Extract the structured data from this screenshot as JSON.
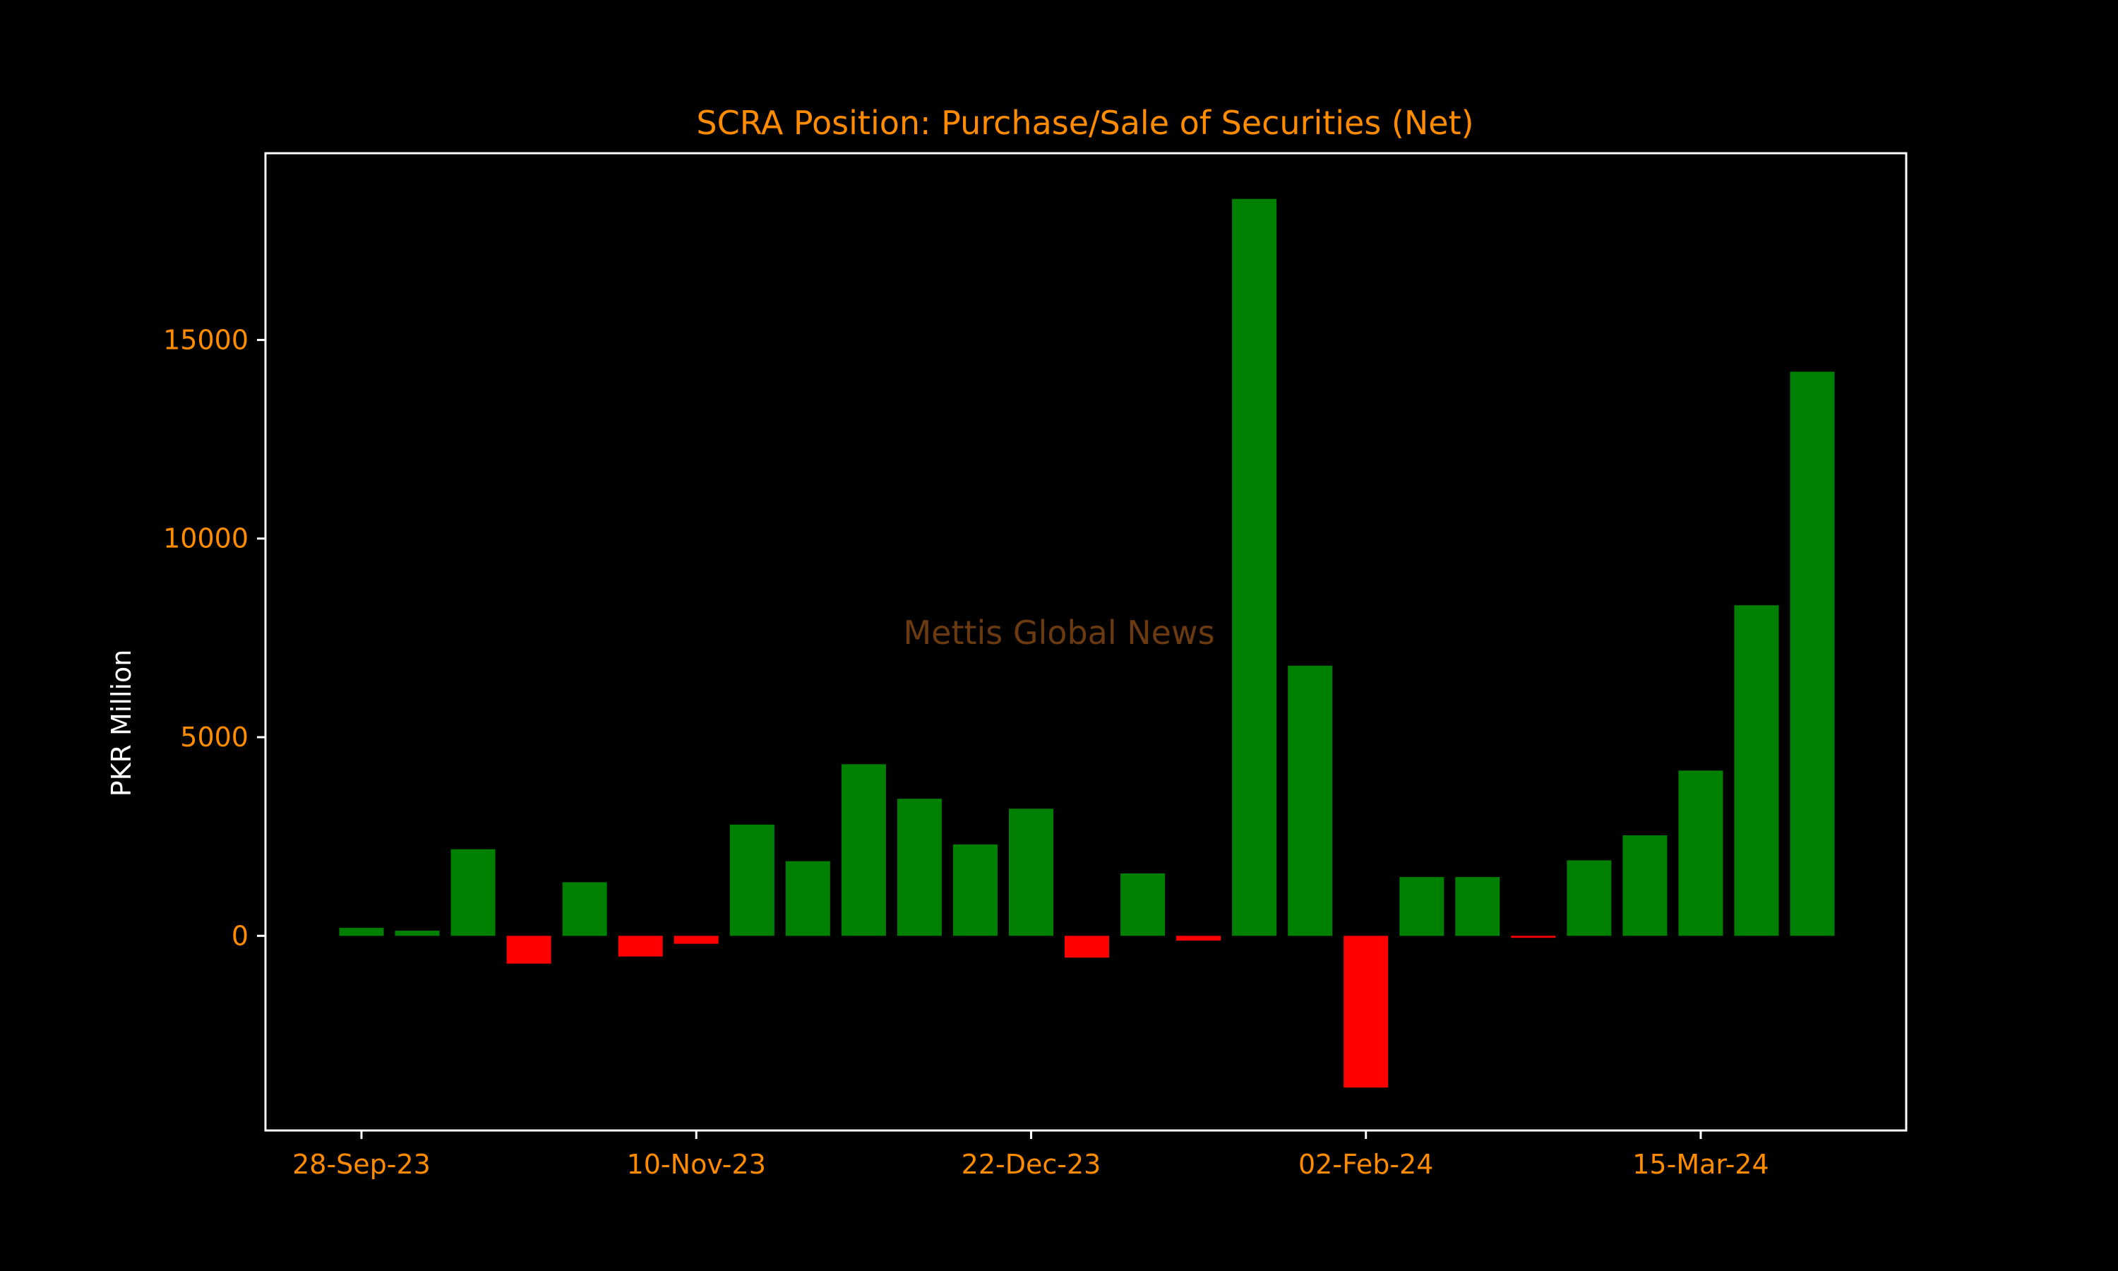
{
  "colors": {
    "background": "#000000",
    "text_accent": "#ff8c00",
    "axis": "#ffffff",
    "ylabel": "#ffffff",
    "positive": "#008000",
    "negative": "#ff0000",
    "watermark": "#6b3a10"
  },
  "watermark": "Mettis Global News",
  "chart_data": {
    "type": "bar",
    "title": "SCRA Position: Purchase/Sale of Securities (Net)",
    "xlabel": "",
    "ylabel": "PKR Million",
    "ylim": [
      -4900,
      19700
    ],
    "yticks": [
      0,
      5000,
      10000,
      15000
    ],
    "grid": false,
    "legend": "none",
    "x_tick_labels": [
      "28-Sep-23",
      "10-Nov-23",
      "22-Dec-23",
      "02-Feb-24",
      "15-Mar-24"
    ],
    "x_tick_indices": [
      0,
      6,
      12,
      18,
      24
    ],
    "values": [
      200,
      130,
      2180,
      -700,
      1350,
      -520,
      -200,
      2800,
      1880,
      4320,
      3450,
      2300,
      3200,
      -550,
      1570,
      -120,
      18550,
      6800,
      -3820,
      1480,
      1480,
      -50,
      1900,
      2530,
      4160,
      8320,
      14200
    ]
  }
}
